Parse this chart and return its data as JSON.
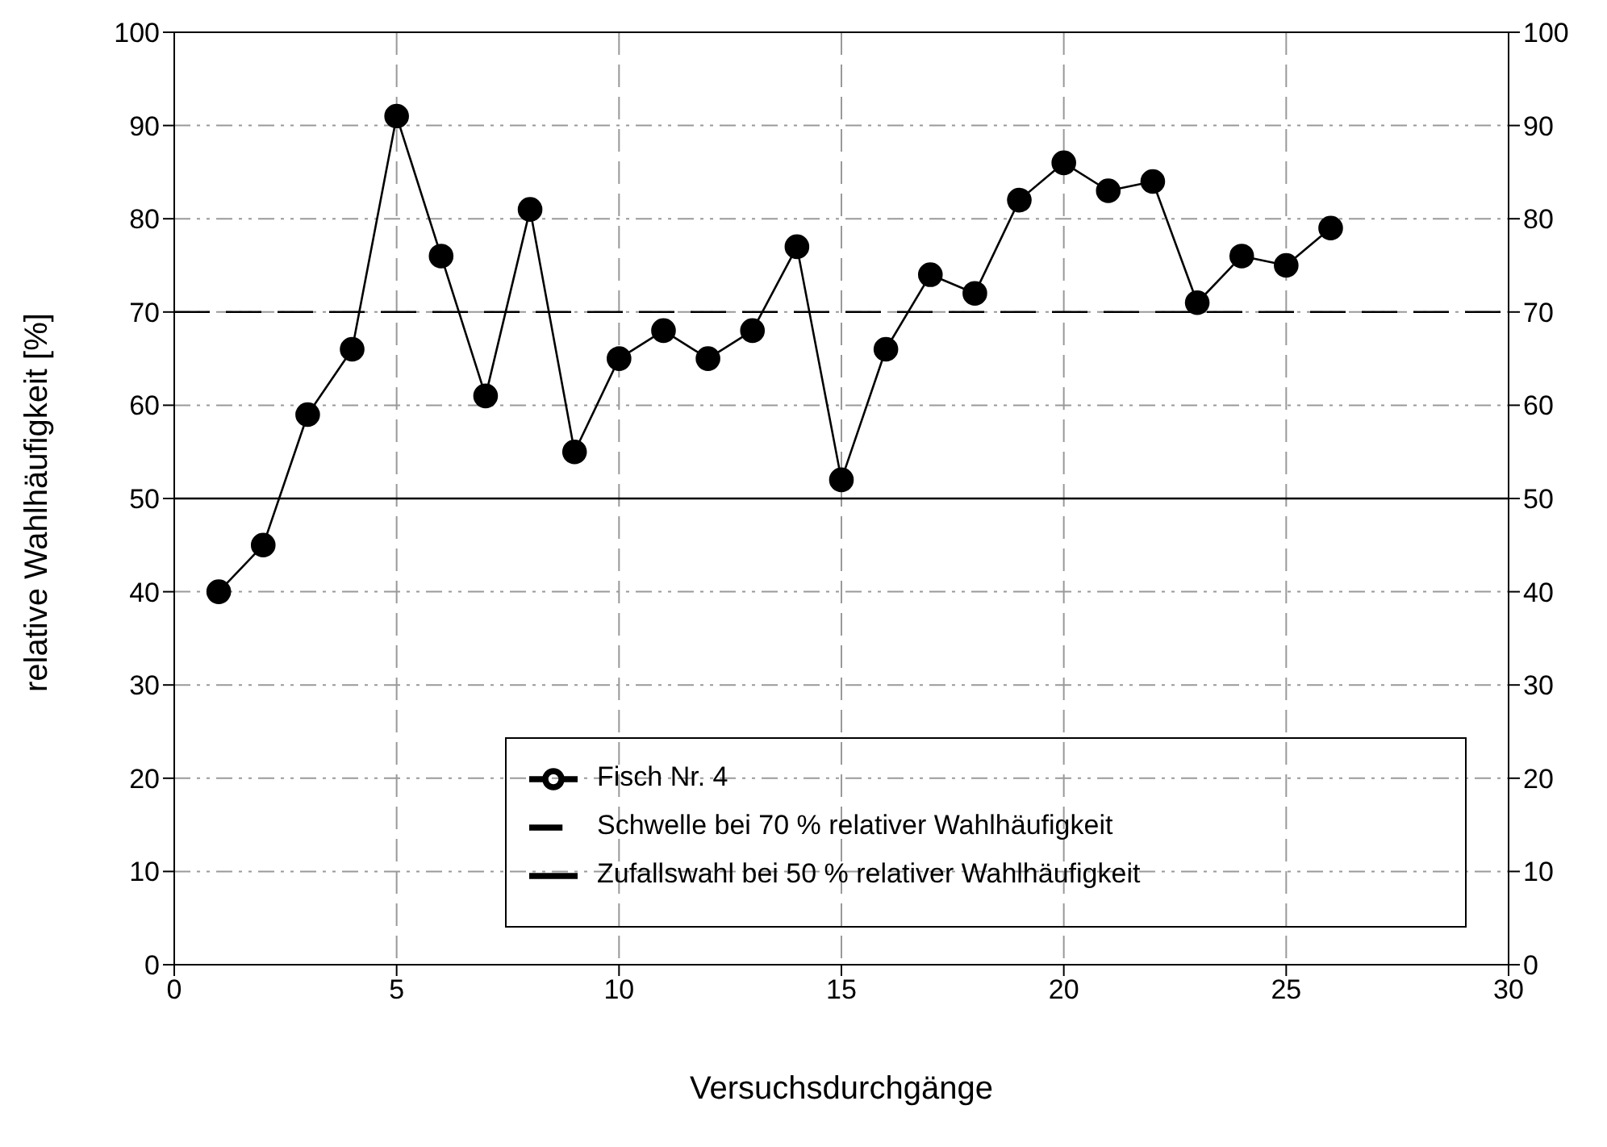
{
  "chart_data": {
    "type": "line",
    "xlabel": "Versuchsdurchgänge",
    "ylabel": "relative Wahlhäufigkeit [%]",
    "x": [
      1,
      2,
      3,
      4,
      5,
      6,
      7,
      8,
      9,
      10,
      11,
      12,
      13,
      14,
      15,
      16,
      17,
      18,
      19,
      20,
      21,
      22,
      23,
      24,
      25,
      26
    ],
    "series": [
      {
        "name": "Fisch Nr. 4",
        "color": "#000000",
        "values": [
          40,
          45,
          59,
          66,
          91,
          76,
          61,
          81,
          55,
          65,
          68,
          65,
          68,
          77,
          52,
          66,
          74,
          72,
          82,
          86,
          83,
          84,
          71,
          76,
          75,
          79
        ]
      }
    ],
    "xlim": [
      0,
      30
    ],
    "xticks": [
      0,
      5,
      10,
      15,
      20,
      25,
      30
    ],
    "ylim": [
      0,
      100
    ],
    "yticks": [
      0,
      10,
      20,
      30,
      40,
      50,
      60,
      70,
      80,
      90,
      100
    ],
    "y2lim": [
      0,
      100
    ],
    "y2ticks": [
      0,
      10,
      20,
      30,
      40,
      50,
      60,
      70,
      80,
      90,
      100
    ],
    "ref_lines": [
      {
        "axis": "y",
        "value": 70,
        "label": "Schwelle bei 70 % relativer Wahlhäufigkeit",
        "color": "#000000",
        "line_style": "dashed"
      },
      {
        "axis": "y",
        "value": 50,
        "label": "Zufallswahl bei 50 % relativer Wahlhäufigkeit",
        "color": "#000000",
        "line_style": "solid"
      }
    ],
    "grid": true,
    "legend": "bottom right",
    "marker": "circle",
    "line_style": "solid"
  }
}
